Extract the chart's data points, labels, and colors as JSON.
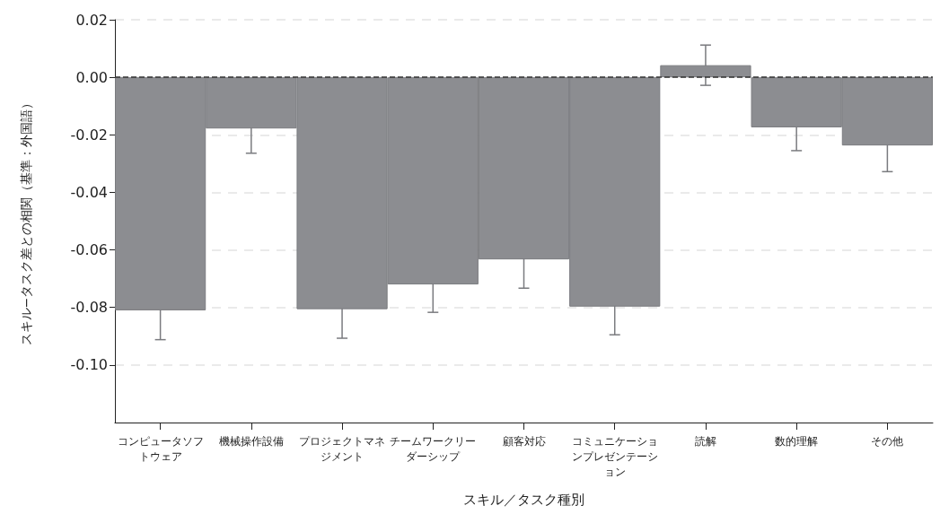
{
  "chart_data": {
    "type": "bar",
    "categories": [
      "コンピュータソフトウェア",
      "機械操作設備",
      "プロジェクトマネジメント",
      "チームワークリーダーシップ",
      "顧客対応",
      "コミュニケーションプレゼンテーション",
      "読解",
      "数的理解",
      "その他"
    ],
    "values": [
      -0.081,
      -0.0178,
      -0.0806,
      -0.072,
      -0.0633,
      -0.0797,
      0.0042,
      -0.0174,
      -0.0237
    ],
    "errors": [
      0.0102,
      0.0086,
      0.0101,
      0.0097,
      0.01,
      0.0098,
      0.007,
      0.0081,
      0.0091
    ],
    "color": "#8c8d91",
    "xlabel": "スキル／タスク種別",
    "ylabel": "スキル−タスク差との相関（基準：外国語）",
    "ylim": [
      -0.12,
      0.02
    ],
    "yticks": [
      {
        "value": 0.02,
        "label": "0.02"
      },
      {
        "value": 0,
        "label": "0.00"
      },
      {
        "value": -0.02,
        "label": "-0.02"
      },
      {
        "value": -0.04,
        "label": "-0.04"
      },
      {
        "value": -0.06,
        "label": "-0.06"
      },
      {
        "value": -0.08,
        "label": "-0.08"
      },
      {
        "value": -0.1,
        "label": "-0.10"
      }
    ],
    "grid": "y",
    "ref_lines": [
      {
        "axis": "y",
        "value": 0,
        "color": "#333333",
        "line_style": "dashed"
      }
    ]
  }
}
